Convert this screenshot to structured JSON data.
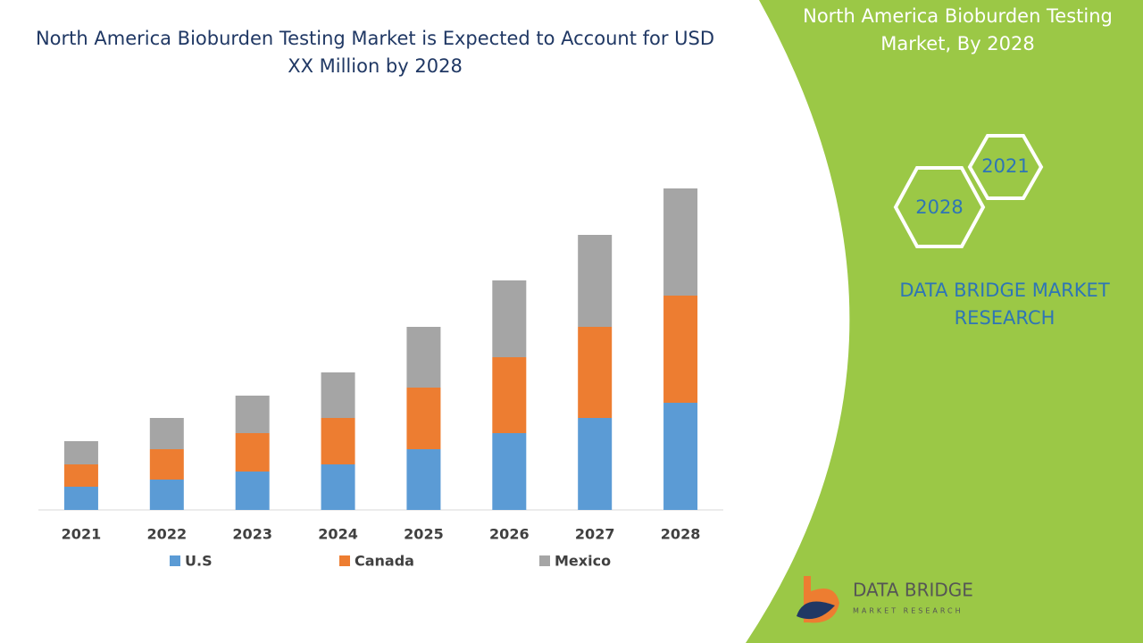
{
  "chart_data": {
    "type": "stacked-bar",
    "title": "North America Bioburden Testing Market is Expected to Account for USD XX Million by 2028",
    "categories": [
      "2021",
      "2022",
      "2023",
      "2024",
      "2025",
      "2026",
      "2027",
      "2028"
    ],
    "series": [
      {
        "name": "U.S",
        "color": "#5b9bd5",
        "values": [
          26,
          34,
          43,
          51,
          68,
          86,
          103,
          120
        ]
      },
      {
        "name": "Canada",
        "color": "#ed7d31",
        "values": [
          25,
          34,
          43,
          52,
          69,
          85,
          102,
          120
        ]
      },
      {
        "name": "Mexico",
        "color": "#a5a5a5",
        "values": [
          26,
          35,
          42,
          51,
          68,
          86,
          103,
          120
        ]
      }
    ]
  },
  "panel": {
    "title": "North America Bioburden Testing Market, By 2028",
    "hexagons": [
      "2021",
      "2028"
    ],
    "brand": "DATA BRIDGE MARKET RESEARCH",
    "logo_name": "DATA BRIDGE",
    "logo_tagline": "MARKET RESEARCH"
  }
}
